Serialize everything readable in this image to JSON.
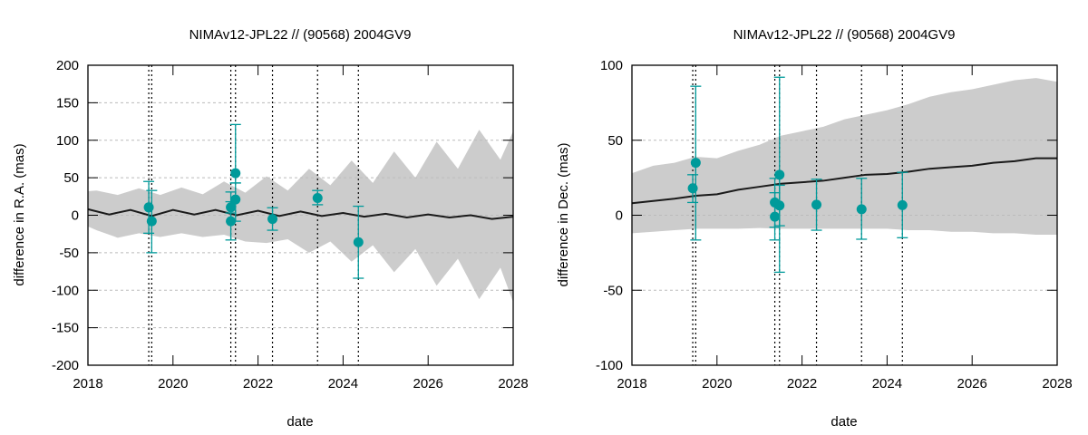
{
  "chart_data": [
    {
      "type": "scatter",
      "title": "NIMAv12-JPL22 // (90568) 2004GV9",
      "xlabel": "date",
      "ylabel": "difference in R.A. (mas)",
      "xlim": [
        2018,
        2028
      ],
      "ylim": [
        -200,
        200
      ],
      "xticks": [
        2018,
        2020,
        2022,
        2024,
        2026,
        2028
      ],
      "yticks": [
        -200,
        -150,
        -100,
        -50,
        0,
        50,
        100,
        150,
        200
      ],
      "grid": "horizontal dashed",
      "colors": {
        "points": "#009a9a",
        "model": "#1a1a1a",
        "band": "#cccccc",
        "epochs": "#000000"
      },
      "observation_epochs": [
        2019.43,
        2019.5,
        2021.36,
        2021.47,
        2022.34,
        2023.4,
        2024.36
      ],
      "points": [
        {
          "x": 2019.43,
          "y": 10.5,
          "err_hi": 45,
          "err_lo": -24
        },
        {
          "x": 2019.5,
          "y": -8,
          "err_hi": 33,
          "err_lo": -50
        },
        {
          "x": 2021.36,
          "y": -8,
          "err_hi": 31,
          "err_lo": -33
        },
        {
          "x": 2021.36,
          "y": 10.5,
          "err_hi": 18,
          "err_lo": 3
        },
        {
          "x": 2021.47,
          "y": 56,
          "err_hi": 121,
          "err_lo": 43
        },
        {
          "x": 2021.47,
          "y": 21,
          "err_hi": 43,
          "err_lo": -8
        },
        {
          "x": 2022.34,
          "y": -5,
          "err_hi": 10,
          "err_lo": -20
        },
        {
          "x": 2023.4,
          "y": 23,
          "err_hi": 33,
          "err_lo": 14
        },
        {
          "x": 2024.36,
          "y": -36,
          "err_hi": 12,
          "err_lo": -84
        }
      ],
      "model_mean": {
        "x": [
          2018,
          2018.5,
          2019,
          2019.5,
          2020,
          2020.5,
          2021,
          2021.5,
          2022,
          2022.5,
          2023,
          2023.5,
          2024,
          2024.5,
          2025,
          2025.5,
          2026,
          2026.5,
          2027,
          2027.5,
          2028
        ],
        "y": [
          8,
          1,
          7,
          -1,
          7,
          1,
          7,
          0,
          6,
          -1,
          5,
          -1,
          3,
          -2,
          2,
          -3,
          1,
          -3,
          0,
          -5,
          -2
        ]
      },
      "model_band": {
        "x": [
          2018,
          2018.2,
          2018.7,
          2019.2,
          2019.7,
          2020.2,
          2020.7,
          2021.2,
          2021.7,
          2022.2,
          2022.7,
          2023.2,
          2023.7,
          2024.2,
          2024.7,
          2025.2,
          2025.7,
          2026.2,
          2026.7,
          2027.2,
          2027.7,
          2028
        ],
        "upper": [
          32,
          33,
          27,
          36,
          27,
          37,
          28,
          45,
          30,
          52,
          33,
          62,
          40,
          73,
          43,
          85,
          50,
          98,
          62,
          114,
          74,
          112
        ],
        "lower": [
          -15,
          -20,
          -30,
          -24,
          -29,
          -24,
          -29,
          -26,
          -35,
          -37,
          -32,
          -50,
          -35,
          -62,
          -40,
          -76,
          -45,
          -94,
          -58,
          -112,
          -70,
          -116
        ]
      }
    },
    {
      "type": "scatter",
      "title": "NIMAv12-JPL22 // (90568) 2004GV9",
      "xlabel": "date",
      "ylabel": "difference in Dec. (mas)",
      "xlim": [
        2018,
        2028
      ],
      "ylim": [
        -100,
        100
      ],
      "xticks": [
        2018,
        2020,
        2022,
        2024,
        2026,
        2028
      ],
      "yticks": [
        -100,
        -50,
        0,
        50,
        100
      ],
      "grid": "horizontal dashed",
      "colors": {
        "points": "#009a9a",
        "model": "#1a1a1a",
        "band": "#cccccc",
        "epochs": "#000000"
      },
      "observation_epochs": [
        2019.43,
        2019.5,
        2021.36,
        2021.47,
        2022.34,
        2023.4,
        2024.36
      ],
      "points": [
        {
          "x": 2019.43,
          "y": 18,
          "err_hi": 27,
          "err_lo": 8.5
        },
        {
          "x": 2019.5,
          "y": 35,
          "err_hi": 86,
          "err_lo": -16.5
        },
        {
          "x": 2021.36,
          "y": -1,
          "err_hi": 24.6,
          "err_lo": -16.5
        },
        {
          "x": 2021.36,
          "y": 8.5,
          "err_hi": 15,
          "err_lo": -8
        },
        {
          "x": 2021.47,
          "y": 27,
          "err_hi": 92,
          "err_lo": -38
        },
        {
          "x": 2021.47,
          "y": 6.5,
          "err_hi": 20,
          "err_lo": -7
        },
        {
          "x": 2022.34,
          "y": 7,
          "err_hi": 24,
          "err_lo": -10
        },
        {
          "x": 2023.4,
          "y": 4,
          "err_hi": 24.6,
          "err_lo": -16
        },
        {
          "x": 2024.36,
          "y": 6.7,
          "err_hi": 28.6,
          "err_lo": -15
        }
      ],
      "model_mean": {
        "x": [
          2018,
          2019,
          2019.5,
          2020,
          2020.5,
          2021,
          2021.5,
          2022,
          2022.5,
          2023,
          2023.5,
          2024,
          2024.5,
          2025,
          2025.5,
          2026,
          2026.5,
          2027,
          2027.5,
          2028
        ],
        "y": [
          8,
          11,
          13,
          14,
          17,
          19,
          21,
          22,
          23,
          25,
          27,
          27.5,
          29,
          31,
          32,
          33,
          35,
          36,
          38,
          38
        ]
      },
      "model_band": {
        "x": [
          2018,
          2018.5,
          2019,
          2019.5,
          2020,
          2020.5,
          2021,
          2021.5,
          2022,
          2022.5,
          2023,
          2023.5,
          2024,
          2024.5,
          2025,
          2025.5,
          2026,
          2026.5,
          2027,
          2027.5,
          2028
        ],
        "upper": [
          28,
          33,
          35,
          39,
          38,
          43,
          47,
          53,
          56,
          59,
          64,
          67,
          70,
          74,
          79,
          82,
          84,
          87,
          90,
          91.5,
          89
        ],
        "lower": [
          -12,
          -11,
          -10,
          -9,
          -9,
          -9,
          -8.5,
          -9,
          -9,
          -9,
          -9,
          -9,
          -9,
          -10,
          -10,
          -11,
          -11,
          -12,
          -12,
          -13,
          -13
        ]
      }
    }
  ]
}
